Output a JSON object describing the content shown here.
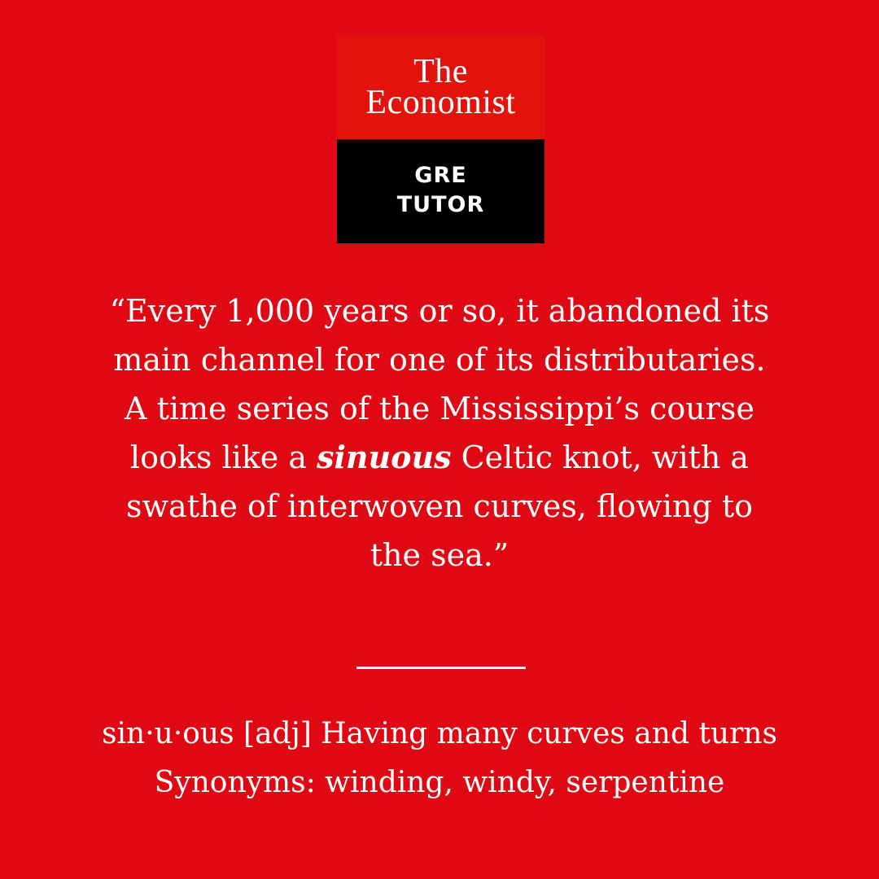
{
  "logo": {
    "brand_line_1": "The",
    "brand_line_2": "Economist",
    "sub_line_1": "GRE",
    "sub_line_2": "TUTOR"
  },
  "quote": {
    "before": "“Every 1,000 years or so, it abandoned its main channel for one of its distributaries. A time series of the Mississippi’s course looks like a ",
    "term": "sinuous",
    "after": " Celtic knot, with a swathe of interwoven curves, flowing to the sea.”"
  },
  "definition": {
    "line_1": "sin·u·ous [adj] Having many curves and turns",
    "line_2": "Synonyms: winding, windy, serpentine"
  },
  "colors": {
    "background": "#e00812",
    "logo_red": "#e3120b",
    "logo_black": "#000000",
    "text": "#ffffff"
  }
}
